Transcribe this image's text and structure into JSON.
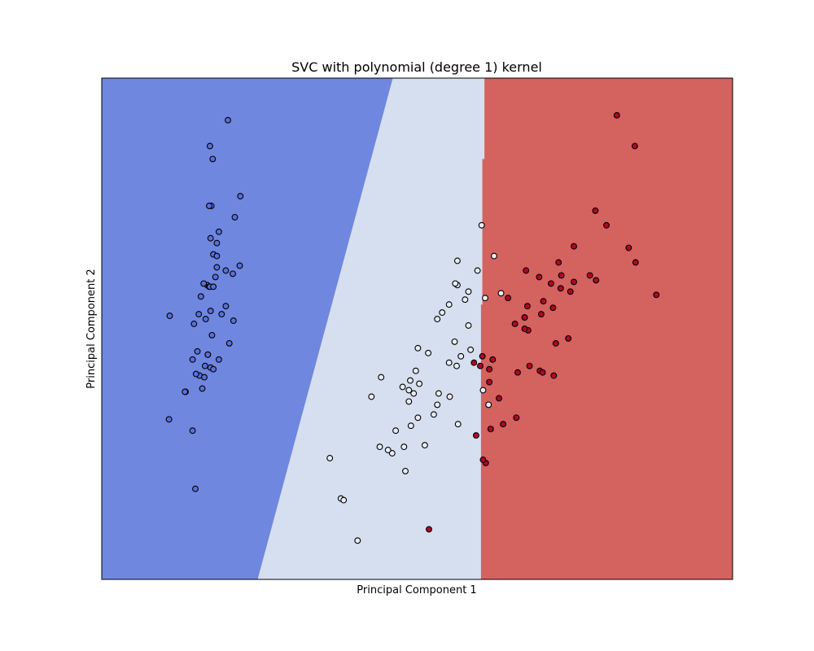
{
  "chart_data": {
    "type": "scatter",
    "title": "SVC with polynomial (degree 1) kernel",
    "xlabel": "Principal Component 1",
    "ylabel": "Principal Component 2",
    "xlim": [
      -4.2,
      4.9
    ],
    "ylim": [
      -1.5,
      1.6
    ],
    "ticks_visible": false,
    "grid": false,
    "regions": {
      "colors": {
        "class_0": "#7087e0",
        "class_1": "#d6dff0",
        "class_2": "#d4625e"
      },
      "boundary_0_1": [
        [
          0.0,
          1.6
        ],
        [
          -1.95,
          -1.5
        ]
      ],
      "boundary_1_2": [
        [
          1.32,
          1.6
        ],
        [
          1.32,
          1.1
        ],
        [
          1.29,
          1.1
        ],
        [
          1.29,
          0.2
        ],
        [
          1.27,
          0.2
        ],
        [
          1.27,
          -1.5
        ]
      ]
    },
    "series": [
      {
        "class": "class_0",
        "color": "#5a6fd8",
        "points": [
          [
            -2.68,
            0.32
          ],
          [
            -2.71,
            -0.18
          ],
          [
            -2.89,
            -0.14
          ],
          [
            -2.75,
            -0.32
          ],
          [
            -2.73,
            0.33
          ],
          [
            -2.28,
            0.74
          ],
          [
            -2.82,
            -0.09
          ],
          [
            -2.63,
            0.16
          ],
          [
            -2.89,
            -0.58
          ],
          [
            -2.67,
            -0.11
          ],
          [
            -2.51,
            0.65
          ],
          [
            -2.61,
            0.01
          ],
          [
            -2.79,
            -0.24
          ],
          [
            -3.23,
            -0.51
          ],
          [
            -2.64,
            1.18
          ],
          [
            -2.38,
            1.34
          ],
          [
            -2.62,
            0.81
          ],
          [
            -2.65,
            0.31
          ],
          [
            -2.2,
            0.87
          ],
          [
            -2.59,
            0.51
          ],
          [
            -2.31,
            0.39
          ],
          [
            -2.54,
            0.43
          ],
          [
            -3.22,
            0.13
          ],
          [
            -2.3,
            0.1
          ],
          [
            -2.36,
            -0.04
          ],
          [
            -2.51,
            -0.14
          ],
          [
            -2.47,
            0.14
          ],
          [
            -2.56,
            0.37
          ],
          [
            -2.64,
            0.31
          ],
          [
            -2.63,
            -0.19
          ],
          [
            -2.59,
            -0.2
          ],
          [
            -2.41,
            0.41
          ],
          [
            -2.65,
            0.81
          ],
          [
            -2.6,
            1.1
          ],
          [
            -2.67,
            -0.11
          ],
          [
            -2.87,
            0.08
          ],
          [
            -2.63,
            0.61
          ],
          [
            -2.8,
            0.14
          ],
          [
            -2.99,
            -0.34
          ],
          [
            -2.59,
            0.31
          ],
          [
            -2.77,
            0.25
          ],
          [
            -2.85,
            -0.94
          ],
          [
            -3.0,
            -0.34
          ],
          [
            -2.41,
            0.19
          ],
          [
            -2.21,
            0.44
          ],
          [
            -2.72,
            -0.25
          ],
          [
            -2.54,
            0.5
          ],
          [
            -2.84,
            -0.23
          ],
          [
            -2.54,
            0.58
          ],
          [
            -2.7,
            0.11
          ]
        ]
      },
      {
        "class": "class_1",
        "color": "#e8edf5",
        "points": [
          [
            1.28,
            0.69
          ],
          [
            0.93,
            0.32
          ],
          [
            1.46,
            0.5
          ],
          [
            0.18,
            -0.83
          ],
          [
            1.09,
            0.07
          ],
          [
            0.64,
            -0.42
          ],
          [
            1.09,
            0.28
          ],
          [
            -0.75,
            -1.0
          ],
          [
            1.04,
            0.23
          ],
          [
            -0.01,
            -0.72
          ],
          [
            -0.51,
            -1.26
          ],
          [
            0.51,
            -0.1
          ],
          [
            0.26,
            -0.55
          ],
          [
            0.98,
            -0.12
          ],
          [
            -0.17,
            -0.25
          ],
          [
            0.93,
            0.47
          ],
          [
            0.66,
            -0.35
          ],
          [
            0.23,
            -0.33
          ],
          [
            0.94,
            -0.54
          ],
          [
            0.04,
            -0.58
          ],
          [
            1.12,
            -0.08
          ],
          [
            0.36,
            -0.07
          ],
          [
            1.3,
            -0.33
          ],
          [
            0.92,
            -0.18
          ],
          [
            0.71,
            0.15
          ],
          [
            0.9,
            0.33
          ],
          [
            1.33,
            0.24
          ],
          [
            1.56,
            0.27
          ],
          [
            0.81,
            -0.16
          ],
          [
            -0.31,
            -0.37
          ],
          [
            -0.07,
            -0.7
          ],
          [
            -0.19,
            -0.68
          ],
          [
            0.14,
            -0.31
          ],
          [
            1.38,
            -0.42
          ],
          [
            0.59,
            -0.48
          ],
          [
            0.81,
            0.2
          ],
          [
            1.22,
            0.41
          ],
          [
            0.82,
            -0.37
          ],
          [
            0.25,
            -0.27
          ],
          [
            0.16,
            -0.68
          ],
          [
            0.46,
            -0.67
          ],
          [
            0.89,
            -0.03
          ],
          [
            0.23,
            -0.4
          ],
          [
            -0.71,
            -1.01
          ],
          [
            0.36,
            -0.5
          ],
          [
            0.33,
            -0.21
          ],
          [
            0.38,
            -0.29
          ],
          [
            0.64,
            0.11
          ],
          [
            -0.91,
            -0.75
          ],
          [
            0.3,
            -0.35
          ]
        ]
      },
      {
        "class": "class_2",
        "color": "#b40426",
        "points": [
          [
            2.53,
            -0.01
          ],
          [
            1.41,
            -0.57
          ],
          [
            2.61,
            0.34
          ],
          [
            1.97,
            -0.18
          ],
          [
            2.35,
            -0.04
          ],
          [
            3.4,
            0.55
          ],
          [
            0.52,
            -1.19
          ],
          [
            2.93,
            0.35
          ],
          [
            2.32,
            -0.24
          ],
          [
            2.92,
            0.78
          ],
          [
            1.66,
            0.24
          ],
          [
            1.8,
            -0.22
          ],
          [
            2.17,
            0.22
          ],
          [
            1.34,
            -0.78
          ],
          [
            1.59,
            -0.54
          ],
          [
            1.9,
            0.12
          ],
          [
            1.95,
            0.04
          ],
          [
            3.49,
            1.18
          ],
          [
            3.8,
            0.26
          ],
          [
            1.3,
            -0.76
          ],
          [
            2.43,
            0.38
          ],
          [
            1.2,
            -0.61
          ],
          [
            3.5,
            0.46
          ],
          [
            1.39,
            -0.2
          ],
          [
            2.28,
            0.33
          ],
          [
            2.61,
            0.56
          ],
          [
            1.26,
            -0.18
          ],
          [
            1.29,
            -0.12
          ],
          [
            2.12,
            -0.21
          ],
          [
            2.39,
            0.46
          ],
          [
            2.84,
            0.38
          ],
          [
            3.23,
            1.37
          ],
          [
            2.16,
            -0.22
          ],
          [
            1.44,
            -0.14
          ],
          [
            1.78,
            -0.5
          ],
          [
            3.08,
            0.69
          ],
          [
            2.14,
            0.14
          ],
          [
            1.9,
            0.05
          ],
          [
            1.17,
            -0.16
          ],
          [
            2.11,
            0.37
          ],
          [
            2.31,
            0.18
          ],
          [
            1.92,
            0.41
          ],
          [
            1.41,
            -0.57
          ],
          [
            2.56,
            0.28
          ],
          [
            2.42,
            0.3
          ],
          [
            1.94,
            0.19
          ],
          [
            1.53,
            -0.38
          ],
          [
            1.76,
            0.08
          ],
          [
            1.9,
            0.12
          ],
          [
            1.39,
            -0.28
          ]
        ]
      }
    ]
  }
}
